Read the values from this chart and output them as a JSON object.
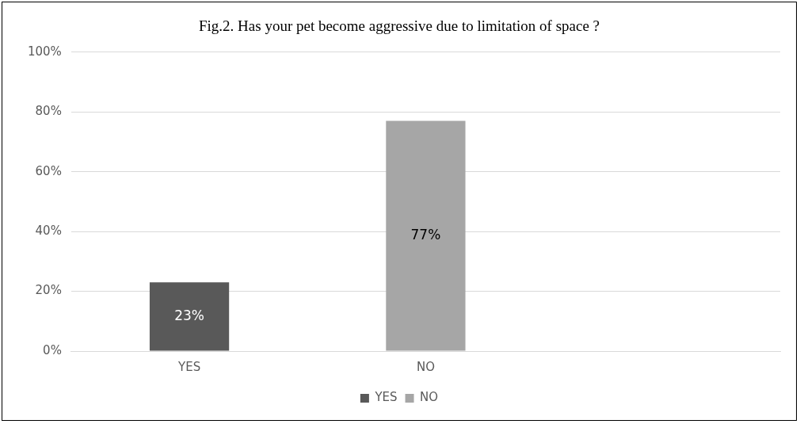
{
  "chart_data": {
    "type": "bar",
    "title": "Fig.2. Has your pet become aggressive due to limitation of space ?",
    "categories": [
      "YES",
      "NO",
      null
    ],
    "series": [
      {
        "name": "YES",
        "color": "#595959",
        "values": [
          23,
          null,
          null
        ],
        "value_labels": [
          "23%",
          null,
          null
        ]
      },
      {
        "name": "NO",
        "color": "#a6a6a6",
        "values": [
          null,
          77,
          null
        ],
        "value_labels": [
          null,
          "77%",
          null
        ]
      }
    ],
    "ylim": [
      0,
      100
    ],
    "yticks": [
      {
        "value": 0,
        "label": "0%"
      },
      {
        "value": 20,
        "label": "20%"
      },
      {
        "value": 40,
        "label": "40%"
      },
      {
        "value": 60,
        "label": "60%"
      },
      {
        "value": 80,
        "label": "80%"
      },
      {
        "value": 100,
        "label": "100%"
      }
    ],
    "grid": "y",
    "legend": "bottom"
  }
}
